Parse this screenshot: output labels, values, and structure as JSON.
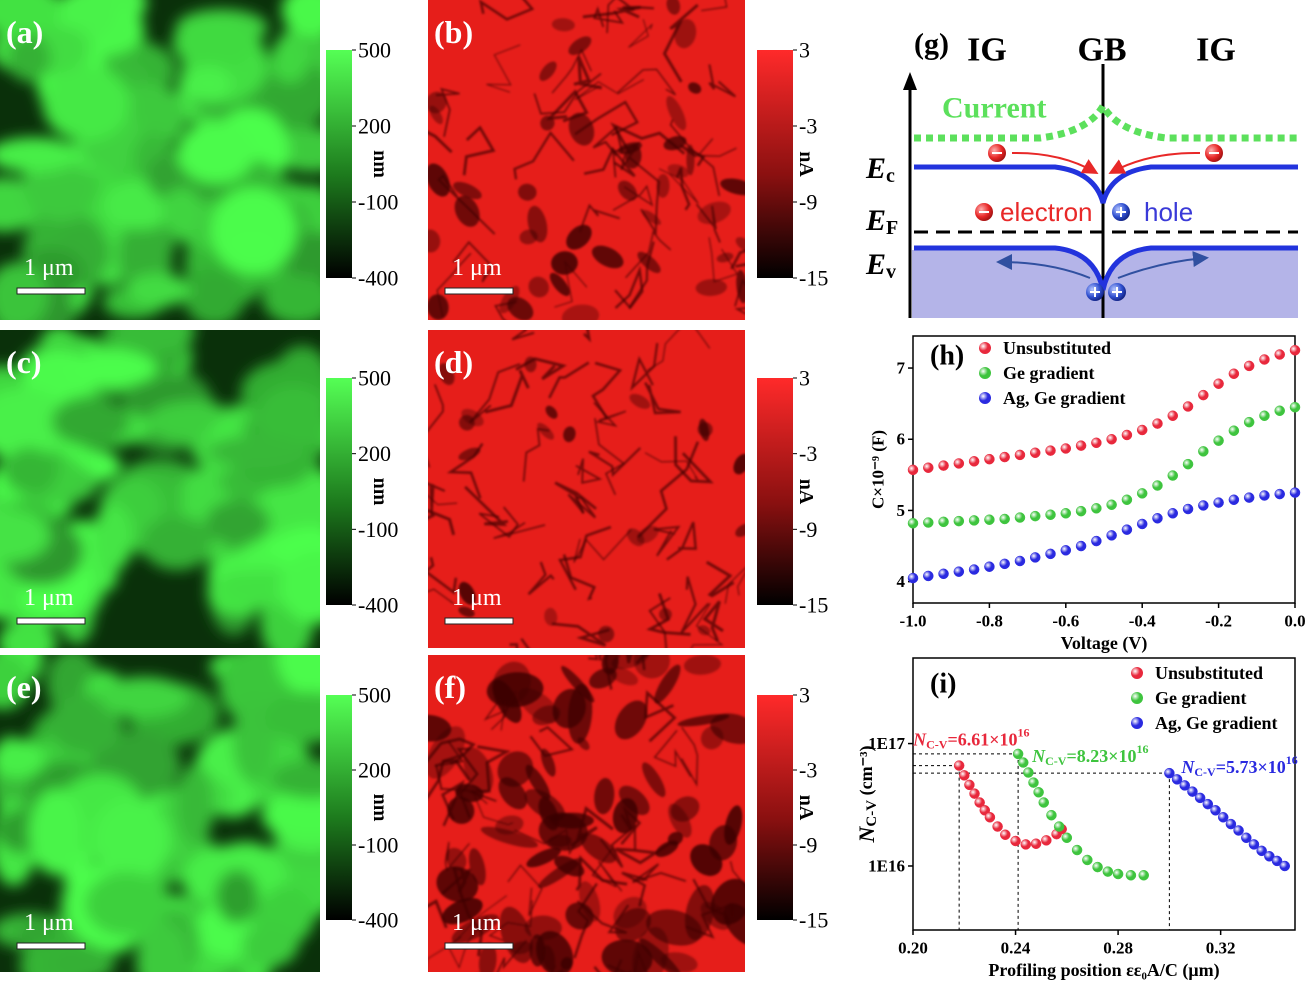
{
  "afm_panels": [
    {
      "label": "(a)",
      "scale_bar": "1 μm",
      "colorbar": {
        "unit": "nm",
        "lim": [
          -400,
          500
        ],
        "ticks": [
          500,
          200,
          -100,
          -400
        ]
      }
    },
    {
      "label": "(b)",
      "scale_bar": "1 μm",
      "colorbar": {
        "unit": "nA",
        "lim": [
          -15,
          3
        ],
        "ticks": [
          3,
          -3,
          -9,
          -15
        ]
      }
    },
    {
      "label": "(c)",
      "scale_bar": "1 μm",
      "colorbar": {
        "unit": "nm",
        "lim": [
          -400,
          500
        ],
        "ticks": [
          500,
          200,
          -100,
          -400
        ]
      }
    },
    {
      "label": "(d)",
      "scale_bar": "1 μm",
      "colorbar": {
        "unit": "nA",
        "lim": [
          -15,
          3
        ],
        "ticks": [
          3,
          -3,
          -9,
          -15
        ]
      }
    },
    {
      "label": "(e)",
      "scale_bar": "1 μm",
      "colorbar": {
        "unit": "nm",
        "lim": [
          -400,
          500
        ],
        "ticks": [
          500,
          200,
          -100,
          -400
        ]
      }
    },
    {
      "label": "(f)",
      "scale_bar": "1 μm",
      "colorbar": {
        "unit": "nA",
        "lim": [
          -15,
          3
        ],
        "ticks": [
          3,
          -3,
          -9,
          -15
        ]
      }
    }
  ],
  "band_diagram": {
    "label": "(g)",
    "regions": [
      "IG",
      "GB",
      "IG"
    ],
    "current": "Current",
    "levels": [
      {
        "symbol": "E",
        "subscript": "c"
      },
      {
        "symbol": "E",
        "subscript": "F"
      },
      {
        "symbol": "E",
        "subscript": "v"
      }
    ],
    "electron": "electron",
    "hole": "hole"
  },
  "chart_data": [
    {
      "type": "scatter",
      "label": "(h)",
      "xlabel": "Voltage (V)",
      "ylabel": "C×10⁻⁹ (F)",
      "x": [
        -1.0,
        -0.96,
        -0.92,
        -0.88,
        -0.84,
        -0.8,
        -0.76,
        -0.72,
        -0.68,
        -0.64,
        -0.6,
        -0.56,
        -0.52,
        -0.48,
        -0.44,
        -0.4,
        -0.36,
        -0.32,
        -0.28,
        -0.24,
        -0.2,
        -0.16,
        -0.12,
        -0.08,
        -0.04,
        0.0
      ],
      "series": [
        {
          "name": "Unsubstituted",
          "color": "#e8283c",
          "values": [
            5.57,
            5.6,
            5.63,
            5.66,
            5.69,
            5.72,
            5.75,
            5.78,
            5.81,
            5.84,
            5.87,
            5.91,
            5.95,
            6.0,
            6.06,
            6.13,
            6.22,
            6.33,
            6.46,
            6.62,
            6.78,
            6.92,
            7.03,
            7.12,
            7.19,
            7.25
          ]
        },
        {
          "name": "Ge gradient",
          "color": "#3ec43e",
          "values": [
            4.82,
            4.83,
            4.84,
            4.85,
            4.86,
            4.87,
            4.88,
            4.9,
            4.92,
            4.94,
            4.96,
            4.99,
            5.03,
            5.08,
            5.15,
            5.24,
            5.35,
            5.49,
            5.65,
            5.83,
            5.98,
            6.12,
            6.24,
            6.33,
            6.4,
            6.45
          ]
        },
        {
          "name": "Ag, Ge gradient",
          "color": "#2a2ae0",
          "values": [
            4.05,
            4.08,
            4.11,
            4.14,
            4.17,
            4.21,
            4.25,
            4.29,
            4.34,
            4.39,
            4.44,
            4.5,
            4.57,
            4.65,
            4.73,
            4.81,
            4.89,
            4.96,
            5.02,
            5.07,
            5.11,
            5.15,
            5.18,
            5.21,
            5.23,
            5.25
          ]
        }
      ],
      "xlim": [
        -1.0,
        0.0
      ],
      "ylim": [
        3.7,
        7.45
      ],
      "xticks": [
        {
          "value": -1.0,
          "label": "-1.0"
        },
        {
          "value": -0.8,
          "label": "-0.8"
        },
        {
          "value": -0.6,
          "label": "-0.6"
        },
        {
          "value": -0.4,
          "label": "-0.4"
        },
        {
          "value": -0.2,
          "label": "-0.2"
        },
        {
          "value": 0.0,
          "label": "0.0"
        }
      ],
      "yticks": [
        4,
        5,
        6,
        7
      ],
      "legend": "upper left"
    },
    {
      "type": "scatter",
      "label": "(i)",
      "xlabel": "Profiling position εε₀A/C (μm)",
      "ylabel": {
        "symbol": "N",
        "subscript": "C-V",
        "text": " (cm⁻³)"
      },
      "log_y": true,
      "series": [
        {
          "name": "Unsubstituted",
          "color": "#e8283c",
          "x": [
            0.218,
            0.22,
            0.222,
            0.224,
            0.226,
            0.228,
            0.23,
            0.233,
            0.236,
            0.24,
            0.244,
            0.248,
            0.252,
            0.256,
            0.258
          ],
          "values": [
            6.61e+16,
            5.5e+16,
            4.6e+16,
            3.9e+16,
            3.3e+16,
            2.85e+16,
            2.5e+16,
            2.1e+16,
            1.8e+16,
            1.6e+16,
            1.5e+16,
            1.52e+16,
            1.62e+16,
            1.82e+16,
            2e+16
          ]
        },
        {
          "name": "Ge gradient",
          "color": "#3ec43e",
          "x": [
            0.241,
            0.243,
            0.245,
            0.247,
            0.249,
            0.251,
            0.254,
            0.257,
            0.26,
            0.264,
            0.268,
            0.272,
            0.276,
            0.28,
            0.285,
            0.29
          ],
          "values": [
            8.23e+16,
            7e+16,
            5.8e+16,
            4.8e+16,
            4e+16,
            3.3e+16,
            2.6e+16,
            2.1e+16,
            1.7e+16,
            1.35e+16,
            1.12e+16,
            9800000000000000.0,
            9000000000000000.0,
            8600000000000000.0,
            8400000000000000.0,
            8400000000000000.0
          ]
        },
        {
          "name": "Ag, Ge gradient",
          "color": "#2a2ae0",
          "x": [
            0.3,
            0.303,
            0.306,
            0.309,
            0.312,
            0.315,
            0.318,
            0.321,
            0.324,
            0.327,
            0.33,
            0.333,
            0.336,
            0.339,
            0.342,
            0.345
          ],
          "values": [
            5.73e+16,
            5.1e+16,
            4.55e+16,
            4.05e+16,
            3.6e+16,
            3.2e+16,
            2.85e+16,
            2.5e+16,
            2.2e+16,
            1.95e+16,
            1.7e+16,
            1.5e+16,
            1.33e+16,
            1.2e+16,
            1.1e+16,
            1e+16
          ]
        }
      ],
      "annotations": [
        {
          "x": 0.218,
          "value": 6.61e+16,
          "symbol": "N",
          "subscript": "C-V",
          "text": "=6.61×10",
          "superscript": "16",
          "color": "#e8283c"
        },
        {
          "x": 0.241,
          "value": 8.23e+16,
          "symbol": "N",
          "subscript": "C-V",
          "text": "=8.23×10",
          "superscript": "16",
          "color": "#3ec43e"
        },
        {
          "x": 0.3,
          "value": 5.73e+16,
          "symbol": "N",
          "subscript": "C-V",
          "text": "=5.73×10",
          "superscript": "16",
          "color": "#2a2ae0"
        }
      ],
      "xlim": [
        0.2,
        0.349
      ],
      "ylim": [
        3000000000000000.0,
        5e+17
      ],
      "xticks": [
        {
          "value": 0.2,
          "label": "0.20"
        },
        {
          "value": 0.24,
          "label": "0.24"
        },
        {
          "value": 0.28,
          "label": "0.28"
        },
        {
          "value": 0.32,
          "label": "0.32"
        }
      ],
      "yticks": [
        {
          "value": 1e+16,
          "label": "1E16"
        },
        {
          "value": 1e+17,
          "label": "1E17"
        }
      ],
      "legend": "upper right"
    }
  ]
}
